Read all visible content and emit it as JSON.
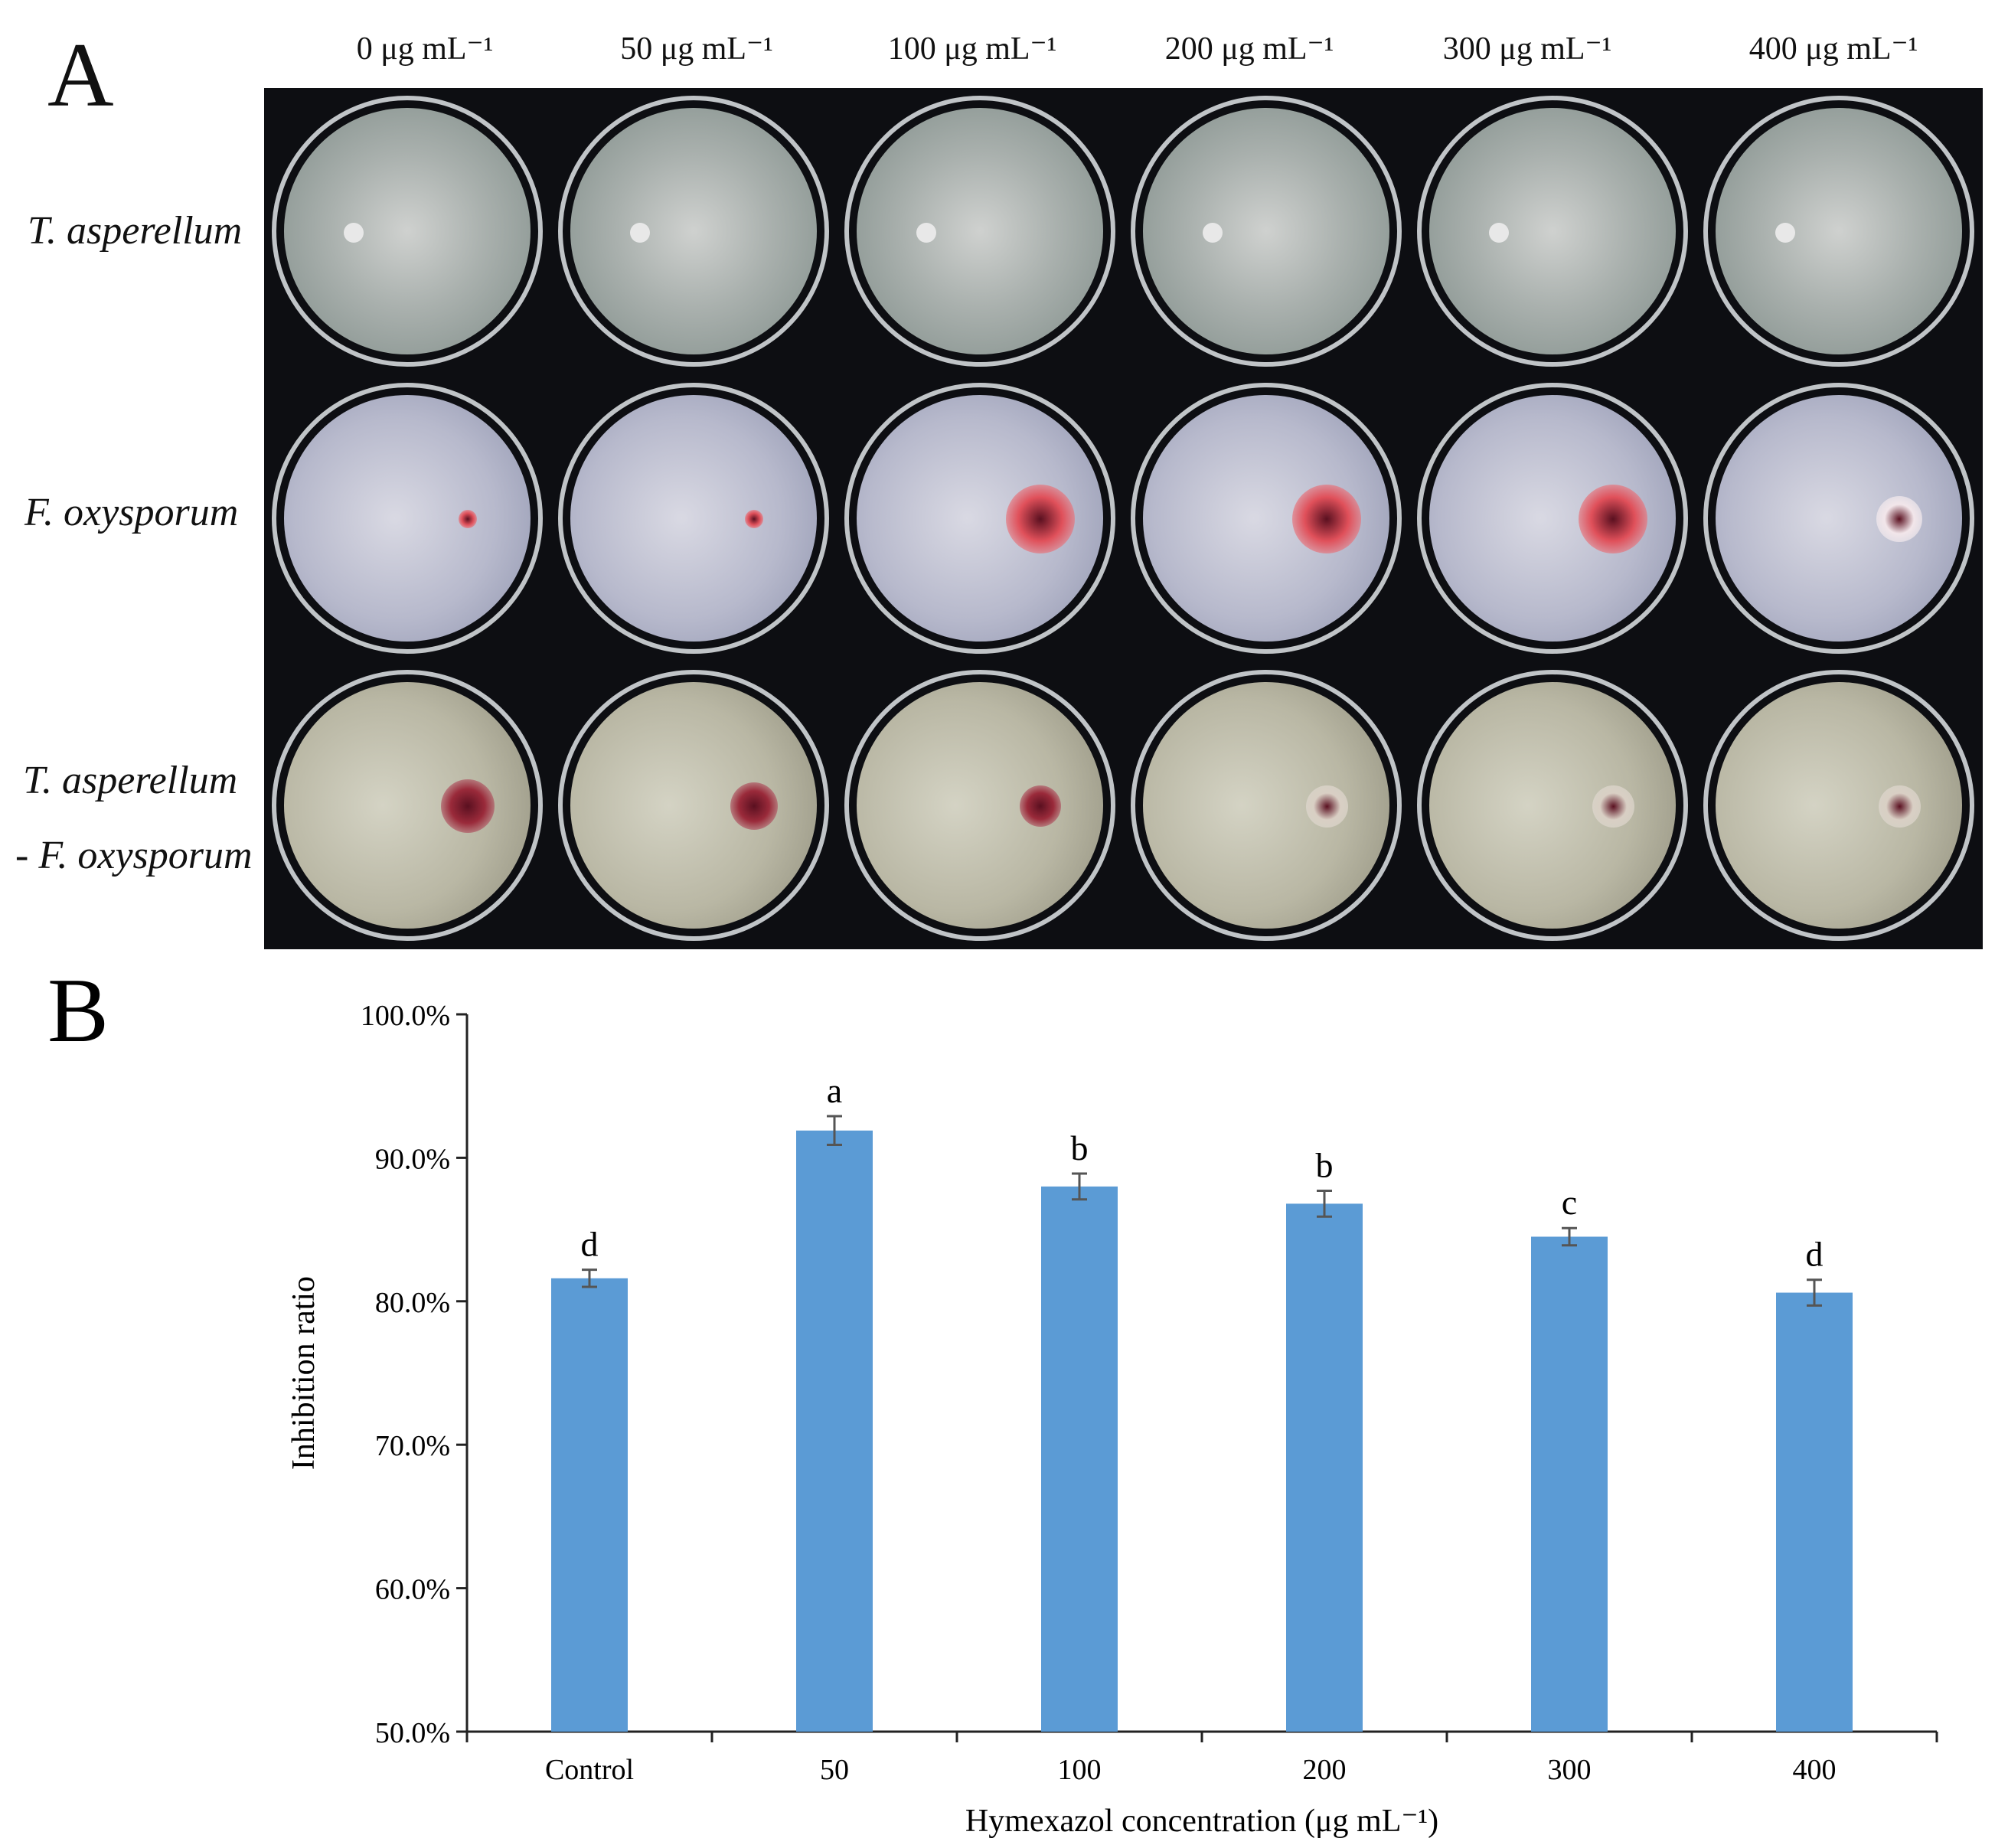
{
  "panel_a": {
    "letter": "A",
    "columns": [
      "0 μg mL⁻¹",
      "50 μg mL⁻¹",
      "100 μg mL⁻¹",
      "200 μg mL⁻¹",
      "300 μg mL⁻¹",
      "400 μg mL⁻¹"
    ],
    "rows": [
      {
        "label": "T. asperellum",
        "label2": ""
      },
      {
        "label": "F. oxysporum",
        "label2": ""
      },
      {
        "label": "T. asperellum",
        "label2": "- F. oxysporum"
      }
    ]
  },
  "chart_data": {
    "panel_letter": "B",
    "type": "bar",
    "categories": [
      "Control",
      "50",
      "100",
      "200",
      "300",
      "400"
    ],
    "values": [
      81.6,
      91.9,
      88.0,
      86.8,
      84.5,
      80.6
    ],
    "errors": [
      0.6,
      1.0,
      0.9,
      0.9,
      0.6,
      0.9
    ],
    "significance": [
      "d",
      "a",
      "b",
      "b",
      "c",
      "d"
    ],
    "ylim": [
      50,
      100
    ],
    "yticks": [
      "50.0%",
      "60.0%",
      "70.0%",
      "80.0%",
      "90.0%",
      "100.0%"
    ],
    "ylabel": "Inhibition ratio",
    "xlabel": "Hymexazol concentration (μg mL⁻¹)",
    "bar_color": "#5b9bd5",
    "grid": false,
    "legend": "none"
  }
}
